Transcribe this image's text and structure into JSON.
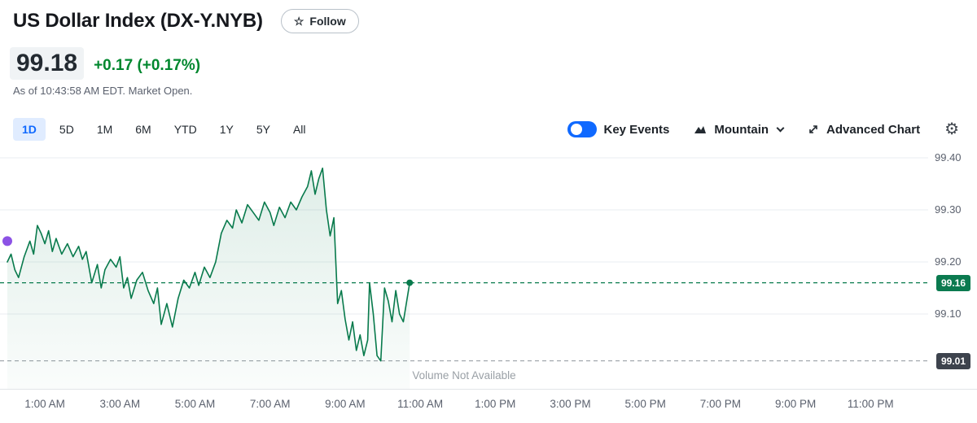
{
  "header": {
    "title": "US Dollar Index (DX-Y.NYB)",
    "follow_label": "Follow"
  },
  "quote": {
    "price": "99.18",
    "change": "+0.17",
    "change_pct": "(+0.17%)",
    "as_of": "As of 10:43:58 AM EDT. Market Open."
  },
  "toolbar": {
    "ranges": [
      {
        "label": "1D",
        "selected": true
      },
      {
        "label": "5D",
        "selected": false
      },
      {
        "label": "1M",
        "selected": false
      },
      {
        "label": "6M",
        "selected": false
      },
      {
        "label": "YTD",
        "selected": false
      },
      {
        "label": "1Y",
        "selected": false
      },
      {
        "label": "5Y",
        "selected": false
      },
      {
        "label": "All",
        "selected": false
      }
    ],
    "key_events_label": "Key Events",
    "key_events_on": true,
    "chart_type_label": "Mountain",
    "advanced_chart_label": "Advanced Chart"
  },
  "chart_data": {
    "type": "area",
    "symbol": "DX-Y.NYB",
    "title": "US Dollar Index intraday price",
    "current_price": 99.16,
    "session_low": 99.01,
    "ylim": [
      98.95,
      99.42
    ],
    "grid": true,
    "volume_note": "Volume Not Available",
    "y_ticks": [
      {
        "label": "99.40",
        "value": 99.4
      },
      {
        "label": "99.30",
        "value": 99.3
      },
      {
        "label": "99.20",
        "value": 99.2
      },
      {
        "label": "99.10",
        "value": 99.1
      }
    ],
    "x_ticks": [
      {
        "label": "1:00 AM",
        "hour": 1
      },
      {
        "label": "3:00 AM",
        "hour": 3
      },
      {
        "label": "5:00 AM",
        "hour": 5
      },
      {
        "label": "7:00 AM",
        "hour": 7
      },
      {
        "label": "9:00 AM",
        "hour": 9
      },
      {
        "label": "11:00 AM",
        "hour": 11
      },
      {
        "label": "1:00 PM",
        "hour": 13
      },
      {
        "label": "3:00 PM",
        "hour": 15
      },
      {
        "label": "5:00 PM",
        "hour": 17
      },
      {
        "label": "7:00 PM",
        "hour": 19
      },
      {
        "label": "9:00 PM",
        "hour": 21
      },
      {
        "label": "11:00 PM",
        "hour": 23
      }
    ],
    "event_marker": {
      "hour": 0.0,
      "value": 99.24
    },
    "series": [
      {
        "name": "DX-Y.NYB",
        "points": [
          [
            0,
            99.2
          ],
          [
            0.1,
            99.215
          ],
          [
            0.2,
            99.185
          ],
          [
            0.3,
            99.17
          ],
          [
            0.45,
            99.21
          ],
          [
            0.6,
            99.24
          ],
          [
            0.7,
            99.215
          ],
          [
            0.8,
            99.27
          ],
          [
            0.9,
            99.255
          ],
          [
            1.0,
            99.235
          ],
          [
            1.1,
            99.26
          ],
          [
            1.2,
            99.22
          ],
          [
            1.3,
            99.245
          ],
          [
            1.45,
            99.215
          ],
          [
            1.6,
            99.235
          ],
          [
            1.75,
            99.21
          ],
          [
            1.9,
            99.23
          ],
          [
            2.0,
            99.205
          ],
          [
            2.1,
            99.22
          ],
          [
            2.25,
            99.16
          ],
          [
            2.4,
            99.195
          ],
          [
            2.5,
            99.15
          ],
          [
            2.6,
            99.185
          ],
          [
            2.75,
            99.205
          ],
          [
            2.9,
            99.19
          ],
          [
            3.0,
            99.21
          ],
          [
            3.1,
            99.15
          ],
          [
            3.2,
            99.17
          ],
          [
            3.3,
            99.13
          ],
          [
            3.45,
            99.165
          ],
          [
            3.6,
            99.18
          ],
          [
            3.75,
            99.145
          ],
          [
            3.9,
            99.12
          ],
          [
            4.0,
            99.15
          ],
          [
            4.1,
            99.08
          ],
          [
            4.25,
            99.12
          ],
          [
            4.4,
            99.075
          ],
          [
            4.55,
            99.13
          ],
          [
            4.7,
            99.165
          ],
          [
            4.85,
            99.15
          ],
          [
            5.0,
            99.18
          ],
          [
            5.1,
            99.155
          ],
          [
            5.25,
            99.19
          ],
          [
            5.4,
            99.17
          ],
          [
            5.55,
            99.2
          ],
          [
            5.7,
            99.255
          ],
          [
            5.85,
            99.28
          ],
          [
            6.0,
            99.265
          ],
          [
            6.1,
            99.3
          ],
          [
            6.25,
            99.275
          ],
          [
            6.4,
            99.31
          ],
          [
            6.55,
            99.295
          ],
          [
            6.7,
            99.28
          ],
          [
            6.85,
            99.315
          ],
          [
            7.0,
            99.295
          ],
          [
            7.1,
            99.27
          ],
          [
            7.25,
            99.305
          ],
          [
            7.4,
            99.285
          ],
          [
            7.55,
            99.315
          ],
          [
            7.7,
            99.3
          ],
          [
            7.85,
            99.325
          ],
          [
            8.0,
            99.345
          ],
          [
            8.1,
            99.375
          ],
          [
            8.2,
            99.33
          ],
          [
            8.3,
            99.36
          ],
          [
            8.4,
            99.38
          ],
          [
            8.5,
            99.3
          ],
          [
            8.6,
            99.25
          ],
          [
            8.7,
            99.285
          ],
          [
            8.8,
            99.12
          ],
          [
            8.9,
            99.145
          ],
          [
            9.0,
            99.09
          ],
          [
            9.1,
            99.05
          ],
          [
            9.2,
            99.085
          ],
          [
            9.3,
            99.03
          ],
          [
            9.4,
            99.06
          ],
          [
            9.5,
            99.02
          ],
          [
            9.6,
            99.05
          ],
          [
            9.65,
            99.16
          ],
          [
            9.75,
            99.1
          ],
          [
            9.85,
            99.02
          ],
          [
            9.95,
            99.01
          ],
          [
            10.05,
            99.15
          ],
          [
            10.15,
            99.125
          ],
          [
            10.25,
            99.085
          ],
          [
            10.35,
            99.145
          ],
          [
            10.45,
            99.1
          ],
          [
            10.55,
            99.085
          ],
          [
            10.72,
            99.16
          ]
        ]
      }
    ],
    "colors": {
      "line": "#087a4c",
      "positive": "#00872e",
      "current_badge_bg": "#0b7a4f",
      "low_badge_bg": "#3d434d",
      "accent_blue": "#0f69ff",
      "event_marker": "#8c52e5",
      "gridline": "#e9edf0",
      "low_line": "#8f959c"
    }
  }
}
